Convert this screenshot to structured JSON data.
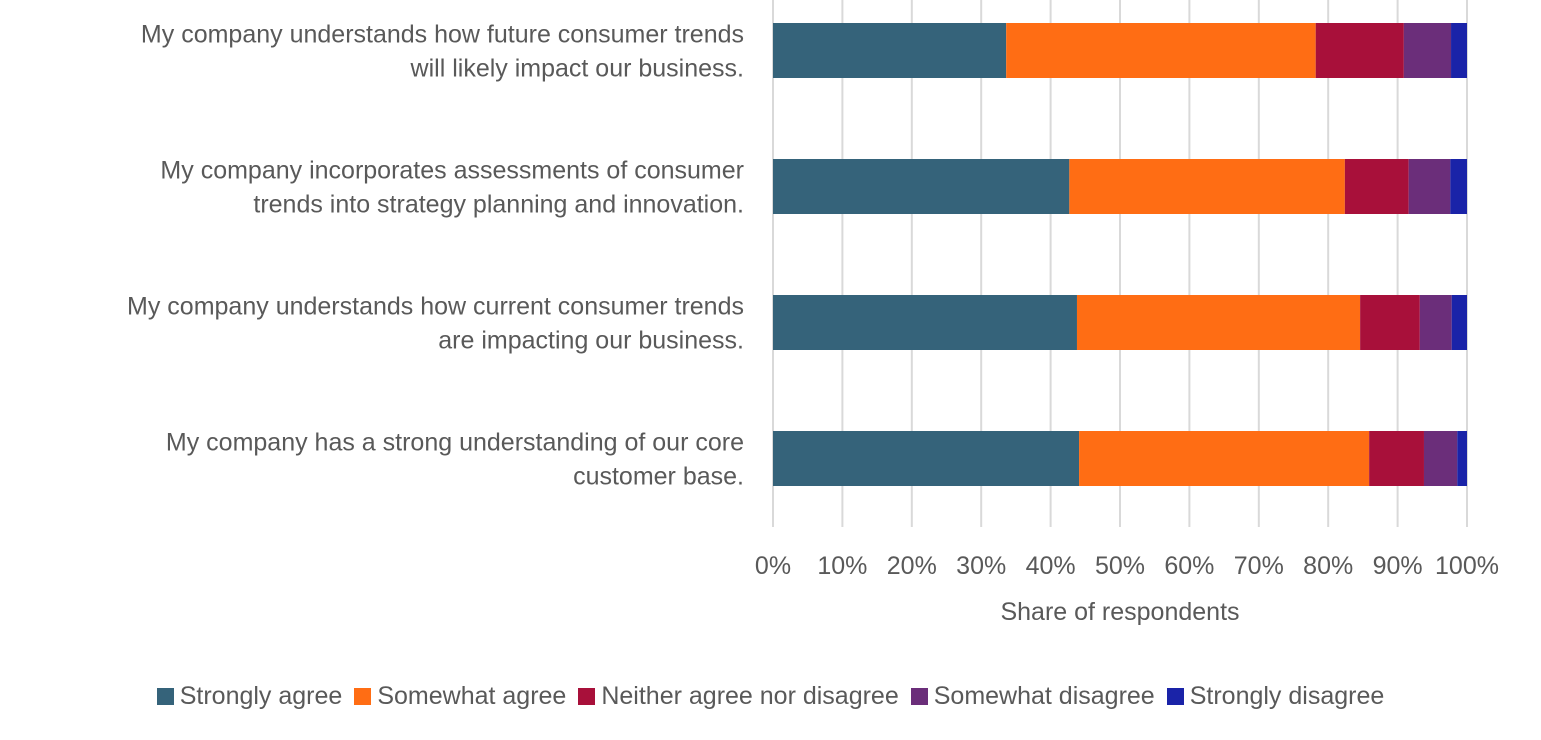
{
  "chart_data": {
    "type": "bar",
    "orientation": "horizontal",
    "stacked": "100%",
    "title": "",
    "xlabel": "Share of respondents",
    "ylabel": "",
    "xlim": [
      0,
      100
    ],
    "x_ticks": [
      "0%",
      "10%",
      "20%",
      "30%",
      "40%",
      "50%",
      "60%",
      "70%",
      "80%",
      "90%",
      "100%"
    ],
    "grid": true,
    "legend_position": "bottom",
    "categories": [
      {
        "lines": [
          "My company understands how future consumer trends",
          "will likely impact our business."
        ]
      },
      {
        "lines": [
          "My company incorporates assessments of consumer",
          "trends into strategy planning and innovation."
        ]
      },
      {
        "lines": [
          "My company understands how current consumer trends",
          "are impacting our business."
        ]
      },
      {
        "lines": [
          "My company has a strong understanding of our core",
          "customer base."
        ]
      }
    ],
    "series": [
      {
        "name": "Strongly agree",
        "color": "#35637A",
        "values": [
          33.6,
          42.7,
          43.8,
          44.1
        ]
      },
      {
        "name": "Somewhat agree",
        "color": "#FF6D14",
        "values": [
          44.6,
          39.7,
          40.8,
          41.8
        ]
      },
      {
        "name": "Neither agree nor disagree",
        "color": "#A8103A",
        "values": [
          12.7,
          9.2,
          8.6,
          7.9
        ]
      },
      {
        "name": "Somewhat disagree",
        "color": "#6B2E7A",
        "values": [
          6.8,
          6.0,
          4.6,
          4.8
        ]
      },
      {
        "name": "Strongly disagree",
        "color": "#1A23A8",
        "values": [
          2.3,
          2.4,
          2.2,
          1.4
        ]
      }
    ]
  }
}
